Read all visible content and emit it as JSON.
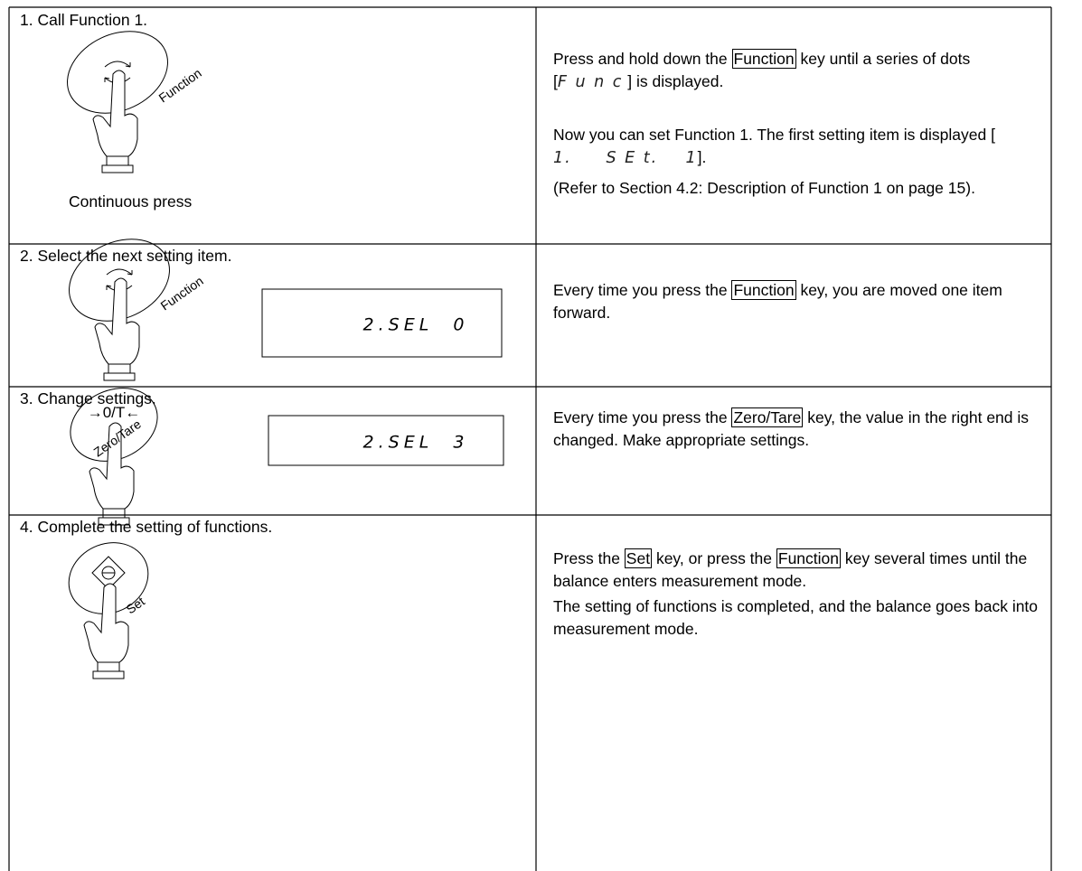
{
  "steps": [
    {
      "title": "1. Call Function 1.",
      "key_label": "Function",
      "caption": "Continuous press",
      "paragraphs": [
        [
          {
            "t": "Press and hold down the "
          },
          {
            "key": "Function"
          },
          {
            "t": " key until a series of dots ["
          },
          {
            "seg": "F u n c"
          },
          {
            "t": " ] is displayed."
          }
        ],
        [
          {
            "t": "Now you can set Function 1. The first setting item is displayed [ "
          },
          {
            "seg": "1.     S E t.    1"
          },
          {
            "t": "]."
          }
        ],
        [
          {
            "t": "(Refer to Section 4.2: Description of Function 1 on page 15)."
          }
        ]
      ]
    },
    {
      "title": "2. Select the next setting item.",
      "key_label": "Function",
      "display": "2.SEL  0",
      "paragraphs": [
        [
          {
            "t": "Every time you press the "
          },
          {
            "key": "Function"
          },
          {
            "t": " key, you are moved one item forward."
          }
        ]
      ]
    },
    {
      "title": "3. Change settings.",
      "key_symbol": "→0/T←",
      "key_label": "Zero/Tare",
      "display": "2.SEL  3",
      "paragraphs": [
        [
          {
            "t": "Every time you press the "
          },
          {
            "key": "Zero/Tare"
          },
          {
            "t": " key, the value in the right end is changed. Make appropriate settings."
          }
        ]
      ]
    },
    {
      "title": "4. Complete the setting of functions.",
      "key_label": "Set",
      "paragraphs": [
        [
          {
            "t": "Press the "
          },
          {
            "key": "Set"
          },
          {
            "t": " key, or press the "
          },
          {
            "key": "Function"
          },
          {
            "t": " key several times until the balance enters measurement mode."
          }
        ],
        [
          {
            "t": "The setting of functions is completed, and the balance goes back into measurement mode."
          }
        ]
      ]
    }
  ]
}
